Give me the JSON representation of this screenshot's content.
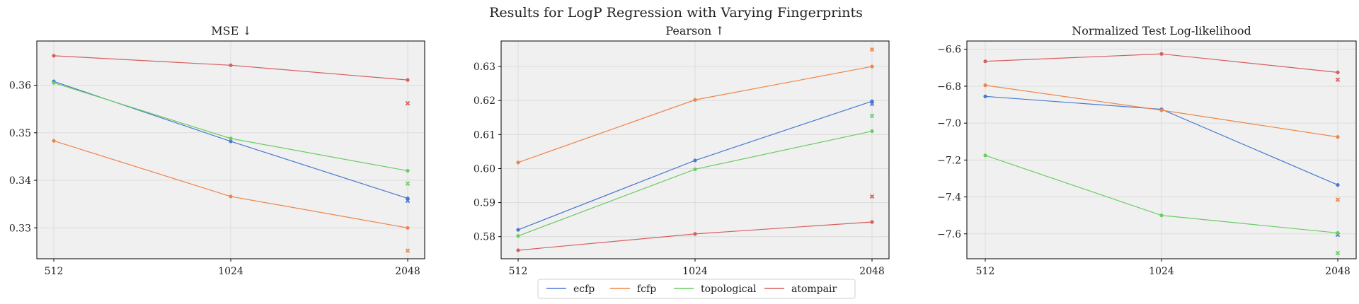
{
  "suptitle": "Results for LogP Regression with Varying Fingerprints",
  "legend": [
    {
      "label": "ecfp",
      "color": "#4878d0"
    },
    {
      "label": "fcfp",
      "color": "#ee854a"
    },
    {
      "label": "topological",
      "color": "#6acc64"
    },
    {
      "label": "atompair",
      "color": "#d65f5f"
    }
  ],
  "chart_data": [
    {
      "type": "line",
      "title": "MSE  ↓",
      "x": [
        512,
        1024,
        2048
      ],
      "xticks": [
        "512",
        "1024",
        "2048"
      ],
      "yticks": [
        "0.33",
        "0.34",
        "0.35",
        "0.36"
      ],
      "ylim": [
        0.3235,
        0.3693
      ],
      "grid": true,
      "series": [
        {
          "name": "ecfp",
          "values": [
            0.3608,
            0.3482,
            0.3362
          ],
          "marker_x": 0.3357
        },
        {
          "name": "fcfp",
          "values": [
            0.3483,
            0.3366,
            0.33
          ],
          "marker_x": 0.3252
        },
        {
          "name": "topological",
          "values": [
            0.3605,
            0.3488,
            0.342
          ],
          "marker_x": 0.3393
        },
        {
          "name": "atompair",
          "values": [
            0.3662,
            0.3642,
            0.3611
          ],
          "marker_x": 0.3562
        }
      ]
    },
    {
      "type": "line",
      "title": "Pearson  ↑",
      "x": [
        512,
        1024,
        2048
      ],
      "xticks": [
        "512",
        "1024",
        "2048"
      ],
      "yticks": [
        "0.58",
        "0.59",
        "0.60",
        "0.61",
        "0.62",
        "0.63"
      ],
      "ylim": [
        0.5735,
        0.6375
      ],
      "grid": true,
      "series": [
        {
          "name": "ecfp",
          "values": [
            0.582,
            0.6024,
            0.6198
          ],
          "marker_x": 0.619
        },
        {
          "name": "fcfp",
          "values": [
            0.6018,
            0.6202,
            0.63
          ],
          "marker_x": 0.635
        },
        {
          "name": "topological",
          "values": [
            0.5802,
            0.5998,
            0.611
          ],
          "marker_x": 0.6155
        },
        {
          "name": "atompair",
          "values": [
            0.576,
            0.5808,
            0.5843
          ],
          "marker_x": 0.5918
        }
      ]
    },
    {
      "type": "line",
      "title": "Normalized Test Log-likelihood",
      "x": [
        512,
        1024,
        2048
      ],
      "xticks": [
        "512",
        "1024",
        "2048"
      ],
      "yticks": [
        "−6.6",
        "−6.8",
        "−7.0",
        "−7.2",
        "−7.4",
        "−7.6"
      ],
      "ylim": [
        -7.735,
        -6.555
      ],
      "grid": true,
      "series": [
        {
          "name": "ecfp",
          "values": [
            -6.855,
            -6.925,
            -7.335
          ],
          "marker_x": -7.605
        },
        {
          "name": "fcfp",
          "values": [
            -6.795,
            -6.93,
            -7.075
          ],
          "marker_x": -7.415
        },
        {
          "name": "topological",
          "values": [
            -7.175,
            -7.5,
            -7.595
          ],
          "marker_x": -7.705
        },
        {
          "name": "atompair",
          "values": [
            -6.665,
            -6.625,
            -6.725
          ],
          "marker_x": -6.765
        }
      ]
    }
  ]
}
